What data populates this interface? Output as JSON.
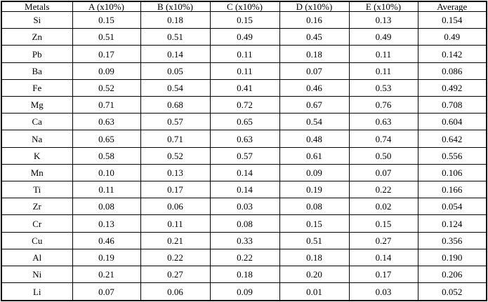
{
  "colors": {
    "border": "#000000",
    "text": "#000000",
    "background": "#ffffff"
  },
  "table": {
    "columns": [
      "Metals",
      "A (x10%)",
      "B (x10%)",
      "C (x10%)",
      "D (x10%)",
      "E (x10%)",
      "Average"
    ],
    "rows": [
      {
        "metal": "Si",
        "values": [
          "0.15",
          "0.18",
          "0.15",
          "0.16",
          "0.13",
          "0.154"
        ]
      },
      {
        "metal": "Zn",
        "values": [
          "0.51",
          "0.51",
          "0.49",
          "0.45",
          "0.49",
          "0.49"
        ]
      },
      {
        "metal": "Pb",
        "values": [
          "0.17",
          "0.14",
          "0.11",
          "0.18",
          "0.11",
          "0.142"
        ]
      },
      {
        "metal": "Ba",
        "values": [
          "0.09",
          "0.05",
          "0.11",
          "0.07",
          "0.11",
          "0.086"
        ]
      },
      {
        "metal": "Fe",
        "values": [
          "0.52",
          "0.54",
          "0.41",
          "0.46",
          "0.53",
          "0.492"
        ]
      },
      {
        "metal": "Mg",
        "values": [
          "0.71",
          "0.68",
          "0.72",
          "0.67",
          "0.76",
          "0.708"
        ]
      },
      {
        "metal": "Ca",
        "values": [
          "0.63",
          "0.57",
          "0.65",
          "0.54",
          "0.63",
          "0.604"
        ]
      },
      {
        "metal": "Na",
        "values": [
          "0.65",
          "0.71",
          "0.63",
          "0.48",
          "0.74",
          "0.642"
        ]
      },
      {
        "metal": "K",
        "values": [
          "0.58",
          "0.52",
          "0.57",
          "0.61",
          "0.50",
          "0.556"
        ]
      },
      {
        "metal": "Mn",
        "values": [
          "0.10",
          "0.13",
          "0.14",
          "0.09",
          "0.07",
          "0.106"
        ]
      },
      {
        "metal": "Ti",
        "values": [
          "0.11",
          "0.17",
          "0.14",
          "0.19",
          "0.22",
          "0.166"
        ]
      },
      {
        "metal": "Zr",
        "values": [
          "0.08",
          "0.06",
          "0.03",
          "0.08",
          "0.02",
          "0.054"
        ]
      },
      {
        "metal": "Cr",
        "values": [
          "0.13",
          "0.11",
          "0.08",
          "0.15",
          "0.15",
          "0.124"
        ]
      },
      {
        "metal": "Cu",
        "values": [
          "0.46",
          "0.21",
          "0.33",
          "0.51",
          "0.27",
          "0.356"
        ]
      },
      {
        "metal": "Al",
        "values": [
          "0.19",
          "0.22",
          "0.22",
          "0.18",
          "0.14",
          "0.190"
        ]
      },
      {
        "metal": "Ni",
        "values": [
          "0.21",
          "0.27",
          "0.18",
          "0.20",
          "0.17",
          "0.206"
        ]
      },
      {
        "metal": "Li",
        "values": [
          "0.07",
          "0.06",
          "0.09",
          "0.01",
          "0.03",
          "0.052"
        ]
      }
    ]
  },
  "chart_data": {
    "type": "table",
    "title": "",
    "categories": [
      "Si",
      "Zn",
      "Pb",
      "Ba",
      "Fe",
      "Mg",
      "Ca",
      "Na",
      "K",
      "Mn",
      "Ti",
      "Zr",
      "Cr",
      "Cu",
      "Al",
      "Ni",
      "Li"
    ],
    "series": [
      {
        "name": "A (x10%)",
        "values": [
          0.15,
          0.51,
          0.17,
          0.09,
          0.52,
          0.71,
          0.63,
          0.65,
          0.58,
          0.1,
          0.11,
          0.08,
          0.13,
          0.46,
          0.19,
          0.21,
          0.07
        ]
      },
      {
        "name": "B (x10%)",
        "values": [
          0.18,
          0.51,
          0.14,
          0.05,
          0.54,
          0.68,
          0.57,
          0.71,
          0.52,
          0.13,
          0.17,
          0.06,
          0.11,
          0.21,
          0.22,
          0.27,
          0.06
        ]
      },
      {
        "name": "C (x10%)",
        "values": [
          0.15,
          0.49,
          0.11,
          0.11,
          0.41,
          0.72,
          0.65,
          0.63,
          0.57,
          0.14,
          0.14,
          0.03,
          0.08,
          0.33,
          0.22,
          0.18,
          0.09
        ]
      },
      {
        "name": "D (x10%)",
        "values": [
          0.16,
          0.45,
          0.18,
          0.07,
          0.46,
          0.67,
          0.54,
          0.48,
          0.61,
          0.09,
          0.19,
          0.08,
          0.15,
          0.51,
          0.18,
          0.2,
          0.01
        ]
      },
      {
        "name": "E (x10%)",
        "values": [
          0.13,
          0.49,
          0.11,
          0.11,
          0.53,
          0.76,
          0.63,
          0.74,
          0.5,
          0.07,
          0.22,
          0.02,
          0.15,
          0.27,
          0.14,
          0.17,
          0.03
        ]
      },
      {
        "name": "Average",
        "values": [
          0.154,
          0.49,
          0.142,
          0.086,
          0.492,
          0.708,
          0.604,
          0.642,
          0.556,
          0.106,
          0.166,
          0.054,
          0.124,
          0.356,
          0.19,
          0.206,
          0.052
        ]
      }
    ]
  }
}
